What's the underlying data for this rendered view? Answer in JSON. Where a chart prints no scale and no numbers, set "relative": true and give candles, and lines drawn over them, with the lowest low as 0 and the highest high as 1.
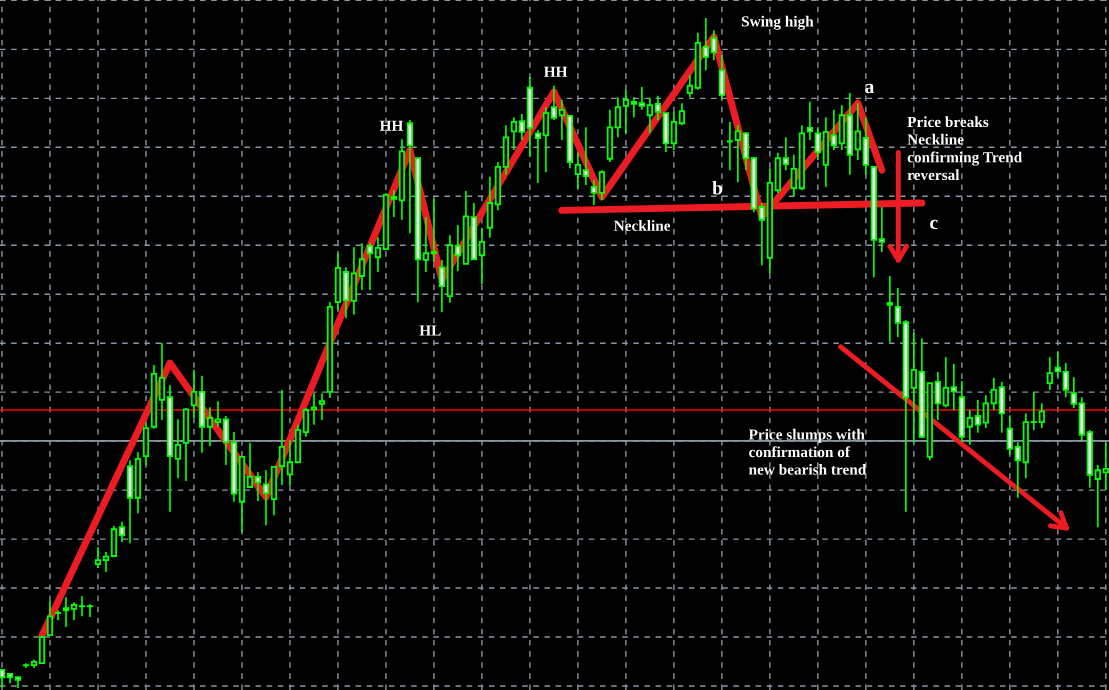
{
  "chart_data": {
    "type": "candlestick",
    "relative": true,
    "grid": true,
    "color": "#00ff00",
    "categories": [
      null,
      null,
      null,
      null,
      null,
      null,
      null,
      null,
      null,
      null,
      null,
      null,
      null,
      null,
      null,
      null,
      null,
      null,
      null,
      null,
      null,
      null,
      null,
      null,
      null,
      null,
      null,
      null,
      null,
      null,
      null,
      null,
      null,
      null,
      null,
      null,
      null,
      null,
      null,
      null,
      null,
      null,
      null,
      null,
      null,
      null,
      null,
      null,
      null,
      null,
      null,
      null,
      null,
      null,
      null,
      null,
      null,
      null,
      null,
      null,
      null,
      null,
      null,
      null,
      null,
      null,
      null,
      null,
      null,
      null,
      null,
      null,
      null,
      null,
      null,
      null,
      null,
      null,
      null,
      null,
      null,
      null,
      null,
      null,
      null,
      null,
      null,
      null,
      null,
      null,
      null,
      null,
      null,
      null,
      null,
      null,
      null,
      null,
      null,
      null,
      null,
      null,
      null,
      null,
      null,
      null,
      null,
      null,
      null,
      null,
      null,
      null,
      null,
      null,
      null,
      null,
      null,
      null,
      null,
      null,
      null,
      null,
      null,
      null,
      null,
      null,
      null,
      null,
      null,
      null,
      null,
      null,
      null,
      null,
      null,
      null,
      null,
      null,
      null
    ],
    "ohlc": [
      [
        0.027,
        0.027,
        0.001,
        0.016
      ],
      [
        0.021,
        0.022,
        0.007,
        0.016
      ],
      [
        0.016,
        0.016,
        0,
        0.012
      ],
      [
        0.034,
        0.037,
        0.03,
        0.034
      ],
      [
        0.034,
        0.042,
        0.03,
        0.039
      ],
      [
        0.037,
        0.078,
        0.037,
        0.076
      ],
      [
        0.079,
        0.13,
        0.079,
        0.107
      ],
      [
        0.112,
        0.116,
        0.101,
        0.112
      ],
      [
        0.119,
        0.136,
        0.091,
        0.116
      ],
      [
        0.118,
        0.128,
        0.101,
        0.124
      ],
      [
        0.122,
        0.137,
        0.107,
        0.122
      ],
      [
        0.122,
        0.125,
        0.106,
        0.122
      ],
      [
        0.185,
        0.21,
        0.179,
        0.191
      ],
      [
        0.191,
        0.203,
        0.173,
        0.196
      ],
      [
        0.197,
        0.242,
        0.196,
        0.237
      ],
      [
        0.24,
        0.248,
        0.218,
        0.228
      ],
      [
        0.331,
        0.34,
        0.216,
        0.284
      ],
      [
        0.284,
        0.352,
        0.261,
        0.342
      ],
      [
        0.346,
        0.396,
        0.333,
        0.388
      ],
      [
        0.39,
        0.482,
        0.387,
        0.469
      ],
      [
        0.43,
        0.515,
        0.4,
        0.463
      ],
      [
        0.434,
        0.452,
        0.263,
        0.346
      ],
      [
        0.342,
        0.401,
        0.313,
        0.363
      ],
      [
        0.366,
        0.418,
        0.309,
        0.416
      ],
      [
        0.422,
        0.475,
        0.403,
        0.442
      ],
      [
        0.442,
        0.466,
        0.351,
        0.39
      ],
      [
        0.39,
        0.419,
        0.361,
        0.403
      ],
      [
        0.397,
        0.428,
        0.39,
        0.401
      ],
      [
        0.401,
        0.406,
        0.333,
        0.367
      ],
      [
        0.366,
        0.382,
        0.278,
        0.29
      ],
      [
        0.278,
        0.345,
        0.233,
        0.345
      ],
      [
        0.3,
        0.366,
        0.3,
        0.315
      ],
      [
        0.315,
        0.322,
        0.279,
        0.307
      ],
      [
        0.304,
        0.325,
        0.243,
        0.291
      ],
      [
        0.282,
        0.33,
        0.258,
        0.33
      ],
      [
        0.331,
        0.445,
        0.303,
        0.36
      ],
      [
        0.319,
        0.37,
        0.303,
        0.337
      ],
      [
        0.337,
        0.393,
        0.337,
        0.385
      ],
      [
        0.382,
        0.418,
        0.375,
        0.415
      ],
      [
        0.416,
        0.44,
        0.393,
        0.419
      ],
      [
        0.424,
        0.44,
        0.4,
        0.428
      ],
      [
        0.442,
        0.576,
        0.433,
        0.569
      ],
      [
        0.576,
        0.649,
        0.564,
        0.627
      ],
      [
        0.621,
        0.628,
        0.552,
        0.579
      ],
      [
        0.578,
        0.658,
        0.557,
        0.619
      ],
      [
        0.615,
        0.664,
        0.594,
        0.64
      ],
      [
        0.66,
        0.664,
        0.594,
        0.649
      ],
      [
        0.643,
        0.673,
        0.621,
        0.657
      ],
      [
        0.655,
        0.739,
        0.654,
        0.736
      ],
      [
        0.733,
        0.743,
        0.703,
        0.73
      ],
      [
        0.728,
        0.819,
        0.699,
        0.801
      ],
      [
        0.843,
        0.848,
        0.679,
        0.81
      ],
      [
        0.791,
        0.791,
        0.576,
        0.64
      ],
      [
        0.639,
        0.703,
        0.621,
        0.649
      ],
      [
        0.651,
        0.73,
        0.636,
        0.649
      ],
      [
        0.628,
        0.639,
        0.561,
        0.6
      ],
      [
        0.585,
        0.676,
        0.575,
        0.661
      ],
      [
        0.66,
        0.691,
        0.622,
        0.646
      ],
      [
        0.633,
        0.742,
        0.633,
        0.704
      ],
      [
        0.703,
        0.724,
        0.64,
        0.64
      ],
      [
        0.646,
        0.687,
        0.603,
        0.666
      ],
      [
        0.687,
        0.763,
        0.672,
        0.724
      ],
      [
        0.722,
        0.785,
        0.713,
        0.778
      ],
      [
        0.778,
        0.84,
        0.766,
        0.822
      ],
      [
        0.831,
        0.852,
        0.803,
        0.845
      ],
      [
        0.846,
        0.857,
        0.818,
        0.83
      ],
      [
        0.896,
        0.912,
        0.793,
        0.836
      ],
      [
        0.828,
        0.833,
        0.754,
        0.821
      ],
      [
        0.825,
        0.867,
        0.77,
        0.858
      ],
      [
        0.867,
        0.899,
        0.848,
        0.851
      ],
      [
        0.855,
        0.878,
        0.818,
        0.863
      ],
      [
        0.854,
        0.854,
        0.776,
        0.785
      ],
      [
        0.767,
        0.799,
        0.746,
        0.781
      ],
      [
        0.773,
        0.837,
        0.751,
        0.764
      ],
      [
        0.748,
        0.758,
        0.721,
        0.739
      ],
      [
        0.739,
        0.773,
        0.728,
        0.77
      ],
      [
        0.79,
        0.863,
        0.785,
        0.837
      ],
      [
        0.837,
        0.882,
        0.822,
        0.867
      ],
      [
        0.869,
        0.893,
        0.828,
        0.878
      ],
      [
        0.875,
        0.882,
        0.852,
        0.872
      ],
      [
        0.873,
        0.897,
        0.863,
        0.869
      ],
      [
        0.855,
        0.881,
        0.828,
        0.87
      ],
      [
        0.872,
        0.884,
        0.848,
        0.86
      ],
      [
        0.858,
        0.858,
        0.8,
        0.813
      ],
      [
        0.813,
        0.86,
        0.803,
        0.845
      ],
      [
        0.843,
        0.873,
        0.84,
        0.861
      ],
      [
        0.888,
        0.915,
        0.882,
        0.899
      ],
      [
        0.896,
        0.978,
        0.893,
        0.963
      ],
      [
        0.957,
        1.0,
        0.922,
        0.942
      ],
      [
        0.97,
        0.982,
        0.937,
        0.949
      ],
      [
        0.922,
        0.945,
        0.878,
        0.885
      ],
      [
        0.816,
        0.845,
        0.773,
        0.816
      ],
      [
        0.818,
        0.84,
        0.755,
        0.831
      ],
      [
        0.828,
        0.83,
        0.773,
        0.791
      ],
      [
        0.791,
        0.793,
        0.71,
        0.716
      ],
      [
        0.718,
        0.724,
        0.631,
        0.699
      ],
      [
        0.642,
        0.776,
        0.619,
        0.754
      ],
      [
        0.743,
        0.799,
        0.739,
        0.791
      ],
      [
        0.791,
        0.822,
        0.773,
        0.782
      ],
      [
        0.746,
        0.796,
        0.734,
        0.775
      ],
      [
        0.746,
        0.84,
        0.743,
        0.828
      ],
      [
        0.836,
        0.875,
        0.818,
        0.831
      ],
      [
        0.828,
        0.837,
        0.788,
        0.8
      ],
      [
        0.781,
        0.852,
        0.748,
        0.83
      ],
      [
        0.825,
        0.863,
        0.803,
        0.81
      ],
      [
        0.813,
        0.87,
        0.803,
        0.855
      ],
      [
        0.855,
        0.888,
        0.766,
        0.796
      ],
      [
        0.804,
        0.873,
        0.788,
        0.831
      ],
      [
        0.821,
        0.852,
        0.766,
        0.781
      ],
      [
        0.778,
        0.778,
        0.613,
        0.669
      ],
      [
        0.67,
        0.718,
        0.651,
        0.666
      ],
      [
        0.575,
        0.615,
        0.516,
        0.572
      ],
      [
        0.569,
        0.597,
        0.524,
        0.545
      ],
      [
        0.546,
        0.549,
        0.263,
        0.434
      ],
      [
        0.448,
        0.53,
        0.367,
        0.475
      ],
      [
        0.472,
        0.522,
        0.373,
        0.375
      ],
      [
        0.345,
        0.455,
        0.34,
        0.455
      ],
      [
        0.457,
        0.472,
        0.4,
        0.425
      ],
      [
        0.422,
        0.494,
        0.419,
        0.448
      ],
      [
        0.449,
        0.484,
        0.415,
        0.443
      ],
      [
        0.434,
        0.458,
        0.367,
        0.375
      ],
      [
        0.39,
        0.415,
        0.363,
        0.403
      ],
      [
        0.406,
        0.43,
        0.381,
        0.393
      ],
      [
        0.396,
        0.437,
        0.388,
        0.425
      ],
      [
        0.425,
        0.463,
        0.415,
        0.445
      ],
      [
        0.449,
        0.457,
        0.381,
        0.41
      ],
      [
        0.387,
        0.407,
        0.348,
        0.357
      ],
      [
        0.36,
        0.367,
        0.284,
        0.34
      ],
      [
        0.337,
        0.41,
        0.313,
        0.397
      ],
      [
        0.397,
        0.442,
        0.385,
        0.397
      ],
      [
        0.397,
        0.425,
        0.388,
        0.413
      ],
      [
        0.455,
        0.494,
        0.445,
        0.47
      ],
      [
        0.478,
        0.501,
        0.464,
        0.473
      ],
      [
        0.472,
        0.485,
        0.434,
        0.445
      ],
      [
        0.44,
        0.464,
        0.418,
        0.424
      ],
      [
        0.425,
        0.434,
        0.37,
        0.378
      ],
      [
        0.382,
        0.385,
        0.299,
        0.318
      ],
      [
        0.312,
        0.333,
        0.24,
        0.325
      ],
      [
        0.322,
        0.366,
        0.296,
        0.327
      ]
    ],
    "series": [
      {
        "type": "line",
        "color": "#ed1c24",
        "values": [
          null,
          null,
          null,
          null,
          null,
          0.078,
          null,
          null,
          null,
          null,
          null,
          null,
          null,
          null,
          null,
          null,
          null,
          null,
          null,
          null,
          null,
          0.485,
          null,
          null,
          null,
          null,
          null,
          null,
          null,
          null,
          null,
          null,
          null,
          0.285,
          null,
          null,
          null,
          null,
          null,
          null,
          null,
          null,
          null,
          null,
          null,
          null,
          null,
          null,
          null,
          null,
          null,
          0.803,
          null,
          null,
          null,
          0.609,
          null,
          null,
          null,
          null,
          null,
          null,
          null,
          null,
          null,
          null,
          null,
          null,
          null,
          0.89,
          null,
          null,
          null,
          null,
          null,
          0.733,
          null,
          null,
          null,
          null,
          null,
          null,
          null,
          null,
          null,
          null,
          null,
          null,
          null,
          0.972,
          null,
          null,
          null,
          null,
          null,
          0.703,
          null,
          null,
          null,
          null,
          null,
          null,
          null,
          null,
          null,
          null,
          null,
          0.873,
          null,
          null,
          0.773,
          null,
          null,
          null,
          null,
          null,
          null,
          null,
          null,
          null,
          null,
          null,
          null,
          null,
          null,
          null,
          null,
          null,
          null,
          null,
          null,
          null,
          null,
          null,
          null,
          null,
          null,
          null,
          null
        ]
      },
      {
        "type": "line",
        "color": "#ed1c24",
        "values": [
          null,
          null,
          null,
          null,
          null,
          null,
          null,
          null,
          null,
          null,
          null,
          null,
          null,
          null,
          null,
          null,
          null,
          null,
          null,
          null,
          null,
          null,
          null,
          null,
          null,
          null,
          null,
          null,
          null,
          null,
          null,
          null,
          null,
          null,
          null,
          null,
          null,
          null,
          null,
          null,
          null,
          null,
          null,
          null,
          null,
          null,
          null,
          null,
          null,
          null,
          null,
          null,
          null,
          null,
          null,
          null,
          null,
          null,
          null,
          null,
          null,
          null,
          null,
          null,
          null,
          null,
          null,
          null,
          null,
          null,
          0.713,
          null,
          null,
          null,
          null,
          null,
          null,
          null,
          null,
          null,
          null,
          null,
          null,
          null,
          null,
          null,
          null,
          null,
          null,
          null,
          null,
          null,
          null,
          null,
          null,
          null,
          null,
          null,
          null,
          null,
          null,
          null,
          null,
          null,
          null,
          null,
          null,
          null,
          null,
          null,
          null,
          null,
          null,
          null,
          null,
          0.724,
          null,
          null,
          null,
          null,
          null,
          null,
          null,
          null,
          null,
          null,
          null,
          null,
          null,
          null,
          null,
          null,
          null,
          null,
          null,
          null,
          null,
          null,
          null
        ]
      }
    ],
    "ref_lines": [
      {
        "axis": "y",
        "value": 0.415,
        "color": "#ff0000"
      },
      {
        "axis": "y",
        "value": 0.369,
        "color": "#8a96a3"
      }
    ],
    "annotations": [
      "HH",
      "HL",
      "HH",
      "Swing high",
      "a",
      "b",
      "c",
      "Neckline",
      "Price breaks\nNeckline\nconfirming Trend\nreversal",
      "Price slumps with\nconfirmation of\nnew bearish trend"
    ]
  }
}
